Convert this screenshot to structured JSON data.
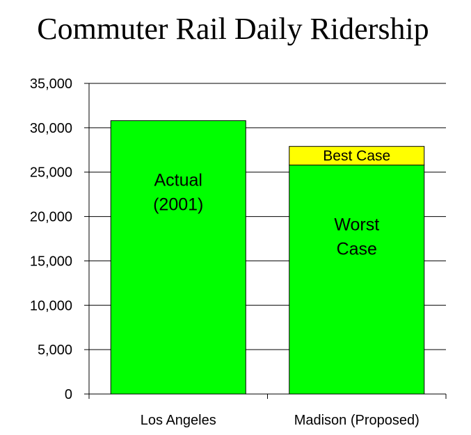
{
  "chart_data": {
    "type": "bar",
    "stacked": true,
    "title": "Commuter Rail Daily Ridership",
    "xlabel": "",
    "ylabel": "",
    "ylim": [
      0,
      35000
    ],
    "yticks": [
      "0",
      "5,000",
      "10,000",
      "15,000",
      "20,000",
      "25,000",
      "30,000",
      "35,000"
    ],
    "grid": true,
    "categories": [
      "Los Angeles",
      "Madison (Proposed)"
    ],
    "bars": [
      {
        "category": "Los Angeles",
        "segments": [
          {
            "label_lines": [
              "Actual",
              "(2001)"
            ],
            "value": 30800,
            "color": "#00ff00"
          }
        ]
      },
      {
        "category": "Madison (Proposed)",
        "segments": [
          {
            "label_lines": [
              "Worst",
              "Case"
            ],
            "value": 25800,
            "color": "#00ff00"
          },
          {
            "label_lines": [
              "Best Case"
            ],
            "value": 2100,
            "color": "#ffff00"
          }
        ]
      }
    ],
    "colors": {
      "worst": "#00ff00",
      "best": "#ffff00",
      "grid": "#000000"
    }
  }
}
